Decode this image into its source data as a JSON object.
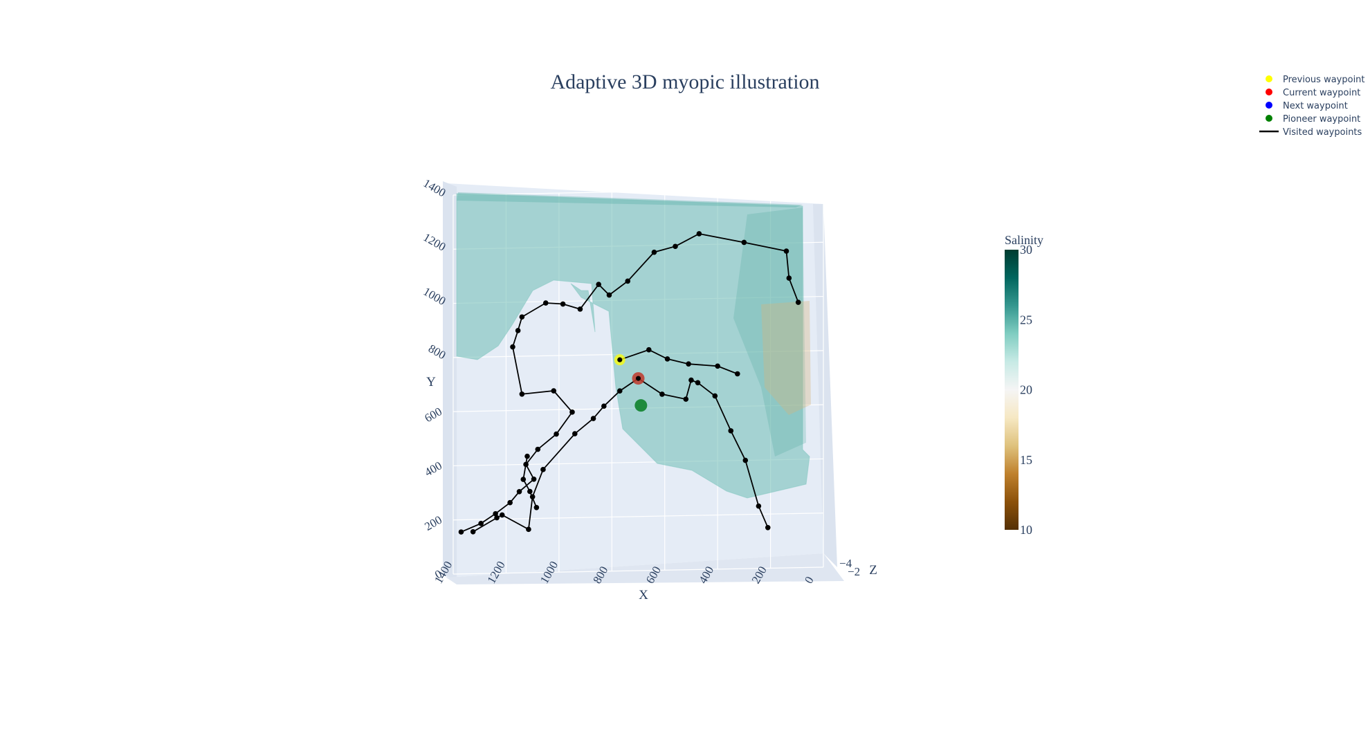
{
  "chart_data": {
    "type": "scatter3d",
    "title": "Adaptive 3D myopic illustration",
    "axes": {
      "x": {
        "title": "X",
        "ticks": [
          "1400",
          "1200",
          "1000",
          "800",
          "600",
          "400",
          "200",
          "0"
        ]
      },
      "y": {
        "title": "Y",
        "ticks": [
          "0",
          "200",
          "400",
          "600",
          "800",
          "1000",
          "1200",
          "1400"
        ]
      },
      "z": {
        "title": "Z",
        "ticks": [
          "−4",
          "−2"
        ]
      }
    },
    "colorbar": {
      "title": "Salinity",
      "ticks": [
        "30",
        "25",
        "20",
        "15",
        "10"
      ],
      "range": [
        10,
        30
      ],
      "colorscale": [
        "#543005",
        "#8c510a",
        "#bf812d",
        "#dfc27d",
        "#f6e8c3",
        "#f5f5f5",
        "#c7eae5",
        "#80cdc1",
        "#35978f",
        "#01665e",
        "#003c30"
      ]
    },
    "legend": {
      "placement": "top-right",
      "entries": [
        {
          "name": "Previous waypoint",
          "color": "#ffff00",
          "symbol": "dot"
        },
        {
          "name": "Current waypoint",
          "color": "#ff0000",
          "symbol": "dot"
        },
        {
          "name": "Next waypoint",
          "color": "#0000ff",
          "symbol": "dot"
        },
        {
          "name": "Pioneer waypoint",
          "color": "#008000",
          "symbol": "dot"
        },
        {
          "name": "Visited waypoints",
          "color": "#000000",
          "symbol": "line"
        }
      ]
    },
    "visited_path": [
      [
        1325,
        155
      ],
      [
        1235,
        205
      ],
      [
        1215,
        215
      ],
      [
        1115,
        160
      ],
      [
        1100,
        280
      ],
      [
        1060,
        380
      ],
      [
        940,
        510
      ],
      [
        870,
        565
      ],
      [
        830,
        610
      ],
      [
        770,
        665
      ],
      [
        700,
        710
      ],
      [
        610,
        650
      ],
      [
        520,
        630
      ],
      [
        500,
        700
      ],
      [
        475,
        690
      ],
      [
        410,
        640
      ],
      [
        350,
        510
      ],
      [
        295,
        400
      ],
      [
        245,
        230
      ],
      [
        210,
        150
      ]
    ],
    "visited_path_2": [
      [
        1370,
        155
      ],
      [
        1295,
        185
      ],
      [
        1240,
        220
      ],
      [
        1185,
        260
      ],
      [
        1150,
        300
      ],
      [
        1095,
        345
      ],
      [
        1125,
        400
      ],
      [
        1080,
        455
      ],
      [
        1010,
        510
      ],
      [
        950,
        590
      ],
      [
        1020,
        670
      ],
      [
        1140,
        660
      ],
      [
        1175,
        835
      ],
      [
        1155,
        895
      ],
      [
        1140,
        945
      ],
      [
        1050,
        995
      ],
      [
        985,
        990
      ],
      [
        920,
        970
      ],
      [
        850,
        1060
      ],
      [
        810,
        1020
      ],
      [
        740,
        1070
      ],
      [
        640,
        1175
      ],
      [
        560,
        1195
      ],
      [
        470,
        1240
      ],
      [
        300,
        1205
      ],
      [
        140,
        1170
      ],
      [
        130,
        1070
      ],
      [
        95,
        980
      ]
    ],
    "visited_path_3": [
      [
        1120,
        430
      ],
      [
        1135,
        345
      ],
      [
        1110,
        300
      ],
      [
        1085,
        240
      ]
    ],
    "visited_path_4": [
      [
        770,
        780
      ],
      [
        660,
        815
      ],
      [
        590,
        780
      ],
      [
        510,
        760
      ],
      [
        400,
        750
      ],
      [
        325,
        720
      ]
    ],
    "previous_waypoint": [
      770,
      780
    ],
    "current_waypoint": [
      700,
      710
    ],
    "pioneer_waypoint": [
      690,
      610
    ],
    "salinity_surface": {
      "dominant_value": 25,
      "opacity": 0.35
    }
  }
}
